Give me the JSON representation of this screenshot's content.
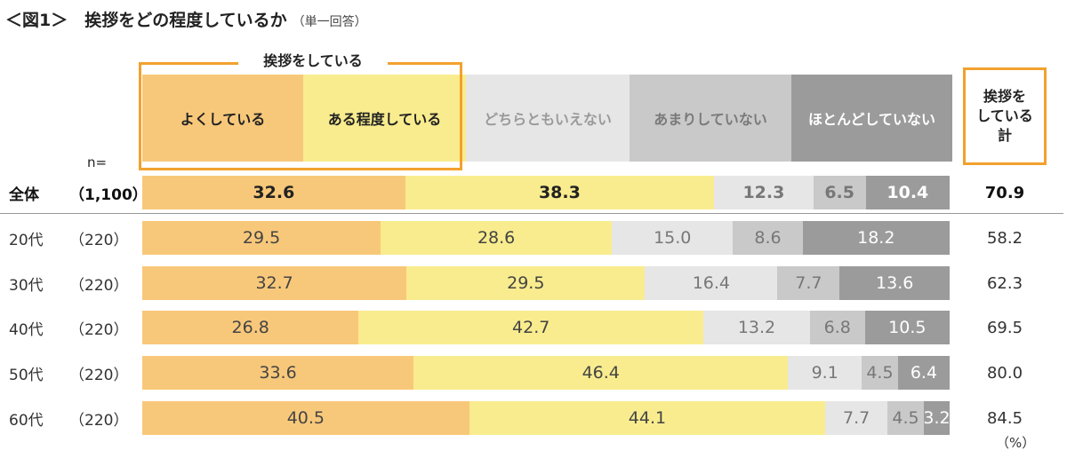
{
  "title": {
    "main": "＜図1＞　挨拶をどの程度しているか",
    "sub": "（単一回答）"
  },
  "header": {
    "group_label": "挨拶をしている",
    "total_label": "挨拶を\nしている\n計",
    "n_label": "n="
  },
  "unit": "（%）",
  "chart_data": {
    "type": "bar",
    "orientation": "horizontal-stacked-100",
    "categories": [
      "よくしている",
      "ある程度している",
      "どちらともいえない",
      "あまりしていない",
      "ほとんどしていない"
    ],
    "colors": [
      "#f8c87a",
      "#f9ec8e",
      "#e6e6e6",
      "#c9c9c9",
      "#9b9b9b"
    ],
    "header_text_colors": [
      "#222222",
      "#222222",
      "#9a9a9a",
      "#7a7a7a",
      "#ffffff"
    ],
    "value_text_colors": [
      "#444444",
      "#444444",
      "#777777",
      "#777777",
      "#ffffff"
    ],
    "rows": [
      {
        "label": "全体",
        "n": "（1,100）",
        "values": [
          32.6,
          38.3,
          12.3,
          6.5,
          10.4
        ],
        "value_labels": [
          "32.6",
          "38.3",
          "12.3",
          "6.5",
          "10.4"
        ],
        "total": "70.9",
        "bold": true
      },
      {
        "label": "20代",
        "n": "（220）",
        "values": [
          29.5,
          28.6,
          15.0,
          8.6,
          18.2
        ],
        "value_labels": [
          "29.5",
          "28.6",
          "15.0",
          "8.6",
          "18.2"
        ],
        "total": "58.2"
      },
      {
        "label": "30代",
        "n": "（220）",
        "values": [
          32.7,
          29.5,
          16.4,
          7.7,
          13.6
        ],
        "value_labels": [
          "32.7",
          "29.5",
          "16.4",
          "7.7",
          "13.6"
        ],
        "total": "62.3"
      },
      {
        "label": "40代",
        "n": "（220）",
        "values": [
          26.8,
          42.7,
          13.2,
          6.8,
          10.5
        ],
        "value_labels": [
          "26.8",
          "42.7",
          "13.2",
          "6.8",
          "10.5"
        ],
        "total": "69.5"
      },
      {
        "label": "50代",
        "n": "（220）",
        "values": [
          33.6,
          46.4,
          9.1,
          4.5,
          6.4
        ],
        "value_labels": [
          "33.6",
          "46.4",
          "9.1",
          "4.5",
          "6.4"
        ],
        "total": "80.0"
      },
      {
        "label": "60代",
        "n": "（220）",
        "values": [
          40.5,
          44.1,
          7.7,
          4.5,
          3.2
        ],
        "value_labels": [
          "40.5",
          "44.1",
          "7.7",
          "4.5",
          "3.2"
        ],
        "total": "84.5"
      }
    ]
  }
}
